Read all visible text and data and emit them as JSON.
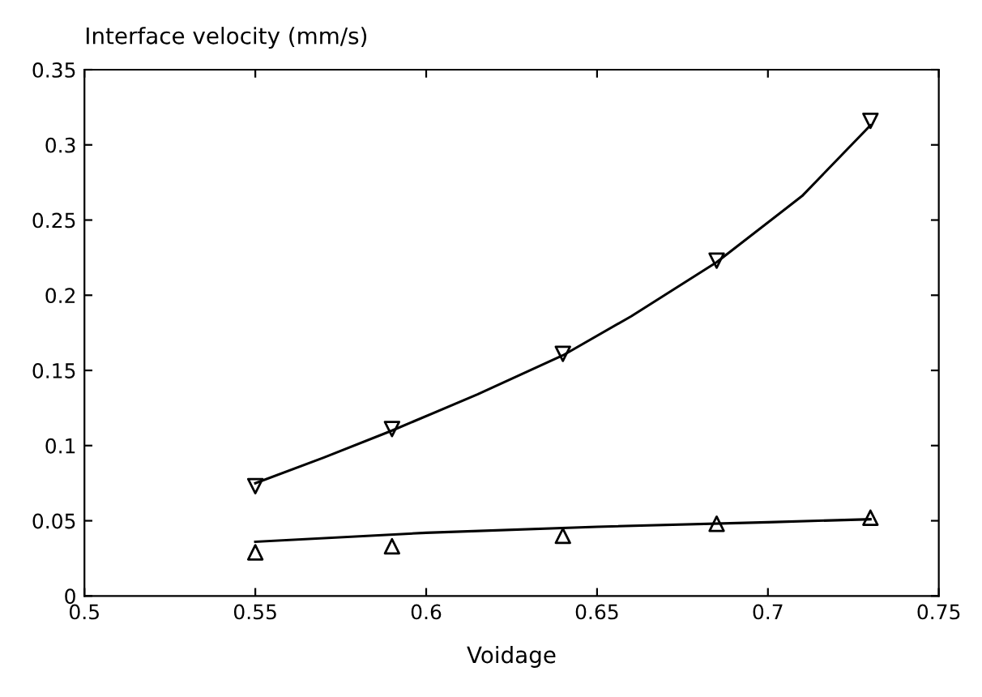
{
  "chart_data": {
    "type": "scatter",
    "xlabel": "Voidage",
    "ylabel": "Interface velocity (mm/s)",
    "xlim": [
      0.5,
      0.75
    ],
    "xticks": [
      0.5,
      0.55,
      0.6,
      0.65,
      0.7,
      0.75
    ],
    "ylim": [
      0,
      0.35
    ],
    "yticks": [
      0,
      0.05,
      0.1,
      0.15,
      0.2,
      0.25,
      0.3,
      0.35
    ],
    "grid": false,
    "legend": false,
    "series": [
      {
        "marker": "triangle_down",
        "color": "#000000",
        "x": [
          0.55,
          0.59,
          0.64,
          0.685,
          0.73
        ],
        "values": [
          0.073,
          0.111,
          0.161,
          0.223,
          0.316
        ]
      },
      {
        "marker": "triangle",
        "color": "#000000",
        "x": [
          0.55,
          0.59,
          0.64,
          0.685,
          0.73
        ],
        "values": [
          0.029,
          0.033,
          0.04,
          0.048,
          0.052
        ]
      },
      {
        "type": "line",
        "marker": "none",
        "color": "#000000",
        "x": [
          0.55,
          0.57,
          0.59,
          0.615,
          0.64,
          0.66,
          0.685,
          0.71,
          0.73
        ],
        "values": [
          0.075,
          0.092,
          0.11,
          0.134,
          0.16,
          0.186,
          0.222,
          0.266,
          0.313
        ]
      },
      {
        "type": "line",
        "marker": "none",
        "color": "#000000",
        "x": [
          0.55,
          0.6,
          0.65,
          0.7,
          0.73
        ],
        "values": [
          0.036,
          0.042,
          0.046,
          0.049,
          0.051
        ]
      }
    ]
  }
}
